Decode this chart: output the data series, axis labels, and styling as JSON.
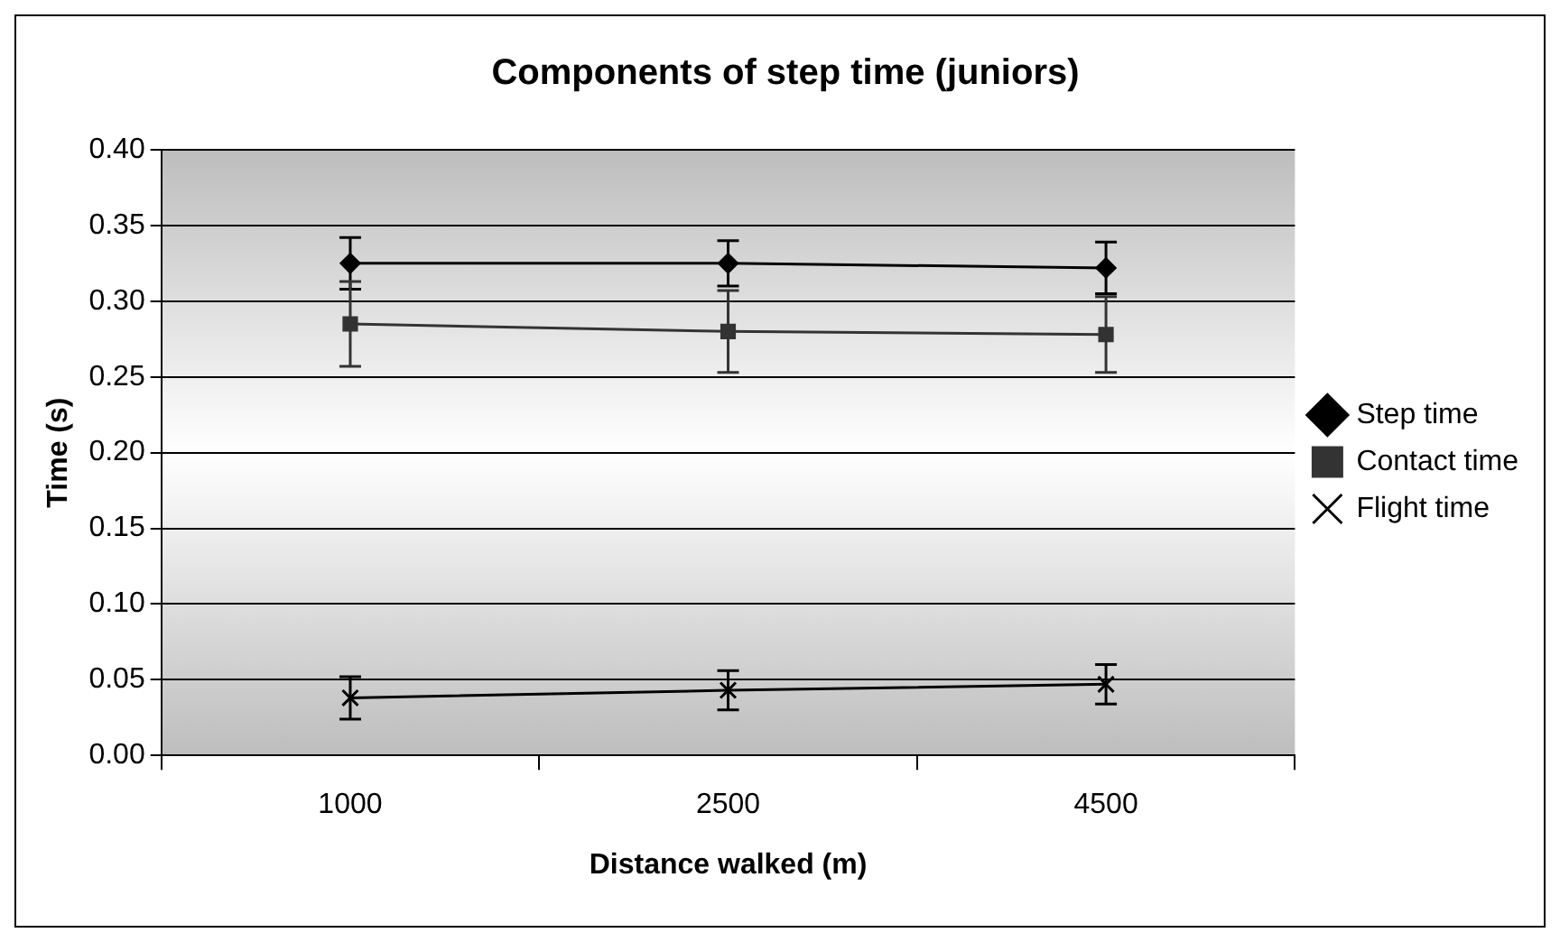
{
  "chart_data": {
    "type": "line",
    "title": "Components of step time (juniors)",
    "xlabel": "Distance walked (m)",
    "ylabel": "Time (s)",
    "categories": [
      "1000",
      "2500",
      "4500"
    ],
    "series": [
      {
        "name": "Step time",
        "color": "#000000",
        "marker": "diamond",
        "values": [
          0.325,
          0.325,
          0.322
        ],
        "errors": [
          0.017,
          0.015,
          0.017
        ]
      },
      {
        "name": "Contact time",
        "color": "#333333",
        "marker": "square",
        "values": [
          0.285,
          0.28,
          0.278
        ],
        "errors": [
          0.028,
          0.027,
          0.025
        ]
      },
      {
        "name": "Flight time",
        "color": "#000000",
        "marker": "cross",
        "values": [
          0.038,
          0.043,
          0.047
        ],
        "errors": [
          0.014,
          0.013,
          0.013
        ]
      }
    ],
    "ylim": [
      0,
      0.4
    ],
    "yticks": [
      {
        "value": 0,
        "label": "0.00"
      },
      {
        "value": 0.05,
        "label": "0.05"
      },
      {
        "value": 0.1,
        "label": "0.10"
      },
      {
        "value": 0.15,
        "label": "0.15"
      },
      {
        "value": 0.2,
        "label": "0.20"
      },
      {
        "value": 0.25,
        "label": "0.25"
      },
      {
        "value": 0.3,
        "label": "0.30"
      },
      {
        "value": 0.35,
        "label": "0.35"
      },
      {
        "value": 0.4,
        "label": "0.40"
      }
    ],
    "grid": "y",
    "legend": "right",
    "line_style": "solid"
  }
}
